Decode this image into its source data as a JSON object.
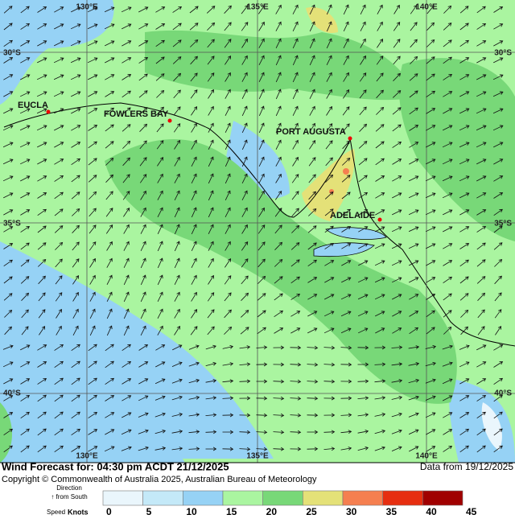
{
  "map": {
    "lon_labels": [
      "130°E",
      "135°E",
      "140°E"
    ],
    "lat_labels": [
      "30°S",
      "35°S",
      "40°S"
    ],
    "places": [
      {
        "name": "EUCLA"
      },
      {
        "name": "FOWLERS BAY"
      },
      {
        "name": "PORT AUGUSTA"
      },
      {
        "name": "ADELAIDE"
      }
    ]
  },
  "footer": {
    "title": "Wind Forecast for: 04:30 pm ACDT 21/12/2025",
    "data_date": "Data from 19/12/2025",
    "copyright": "Copyright © Commonwealth of Australia 2025, Australian Bureau of Meteorology"
  },
  "legend": {
    "direction_label": "Direction",
    "direction_note": "↑ from South",
    "speed_label": "Speed",
    "unit": "Knots",
    "values": [
      0,
      5,
      10,
      15,
      20,
      25,
      30,
      35,
      40,
      45
    ],
    "colors": [
      "#eaf6fc",
      "#c4e9f8",
      "#96d2f5",
      "#aaf5a0",
      "#78d878",
      "#e4e178",
      "#f57f50",
      "#e62e10",
      "#a00000"
    ]
  }
}
